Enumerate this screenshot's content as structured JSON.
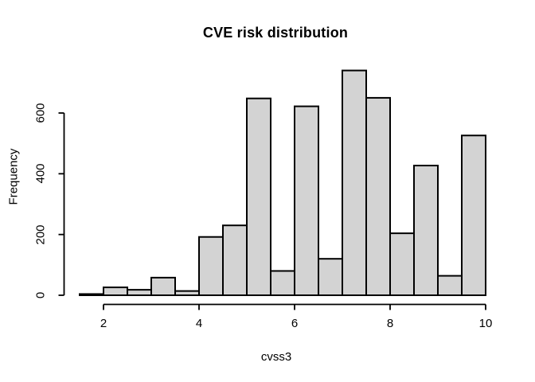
{
  "window": {
    "background": "#ffffff"
  },
  "chart_data": {
    "type": "bar",
    "chart_kind": "histogram",
    "title": "CVE risk distribution",
    "xlabel": "cvss3",
    "ylabel": "Frequency",
    "bin_edges": [
      1.5,
      2.0,
      2.5,
      3.0,
      3.5,
      4.0,
      4.5,
      5.0,
      5.5,
      6.0,
      6.5,
      7.0,
      7.5,
      8.0,
      8.5,
      9.0,
      9.5,
      10.0
    ],
    "frequencies": [
      4,
      26,
      18,
      58,
      14,
      192,
      230,
      648,
      80,
      622,
      120,
      740,
      650,
      204,
      427,
      64,
      526
    ],
    "x_tick_labels": [
      "2",
      "4",
      "6",
      "8",
      "10"
    ],
    "x_tick_values": [
      2,
      4,
      6,
      8,
      10
    ],
    "y_tick_labels": [
      "0",
      "200",
      "400",
      "600"
    ],
    "y_tick_values": [
      0,
      200,
      400,
      600
    ],
    "xlim": [
      1.5,
      10
    ],
    "ylim": [
      0,
      750
    ],
    "grid": false,
    "legend_position": "none",
    "bar_fill": "#d3d3d3",
    "bar_border": "#000000",
    "axis_color": "#000000",
    "text_color": "#000000"
  }
}
